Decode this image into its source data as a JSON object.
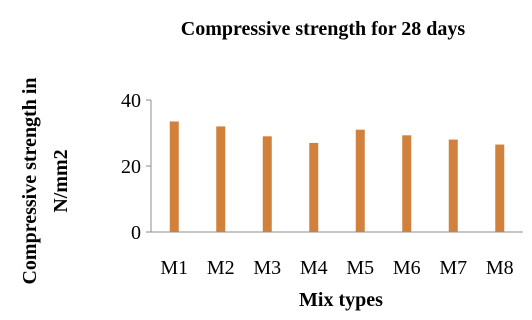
{
  "chart_data": {
    "type": "bar",
    "title": "Compressive strength for 28 days",
    "xlabel": "Mix types",
    "ylabel_lines": [
      "Compressive strength in",
      "N/mm2"
    ],
    "categories": [
      "M1",
      "M2",
      "M3",
      "M4",
      "M5",
      "M6",
      "M7",
      "M8"
    ],
    "values": [
      33.5,
      32.0,
      29.0,
      27.0,
      31.0,
      29.3,
      28.0,
      26.5
    ],
    "ylim": [
      0,
      40
    ],
    "yticks": [
      0,
      20,
      40
    ],
    "grid": false,
    "bar_color": "#d2813c",
    "axis_color": "#8c8c8c"
  }
}
